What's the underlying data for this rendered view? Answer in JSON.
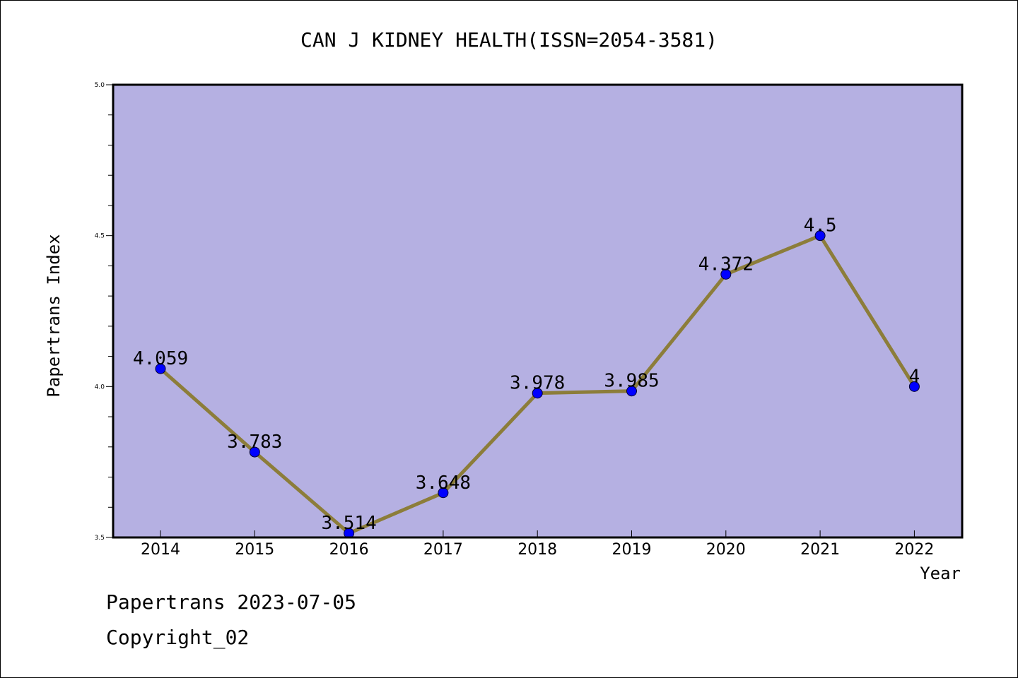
{
  "chart_data": {
    "type": "line",
    "title": "CAN J KIDNEY HEALTH(ISSN=2054-3581)",
    "xlabel": "Year",
    "ylabel": "Papertrans Index",
    "categories": [
      "2014",
      "2015",
      "2016",
      "2017",
      "2018",
      "2019",
      "2020",
      "2021",
      "2022"
    ],
    "series": [
      {
        "name": "Papertrans Index",
        "values": [
          4.059,
          3.783,
          3.514,
          3.648,
          3.978,
          3.985,
          4.372,
          4.5,
          4
        ],
        "labels": [
          "4.059",
          "3.783",
          "3.514",
          "3.648",
          "3.978",
          "3.985",
          "4.372",
          "4.5",
          "4"
        ]
      }
    ],
    "ylim": [
      3.5,
      5.0
    ],
    "yticks_major": [
      "3.5",
      "4.0",
      "4.5",
      "5.0"
    ],
    "ytick_minor_step": 0.1,
    "grid": false,
    "colors": {
      "plot_background": "#b5b0e2",
      "line": "#8c7d3a",
      "marker": "#0000ff"
    }
  },
  "footer": {
    "line1": "Papertrans 2023-07-05",
    "line2": "Copyright_02"
  }
}
